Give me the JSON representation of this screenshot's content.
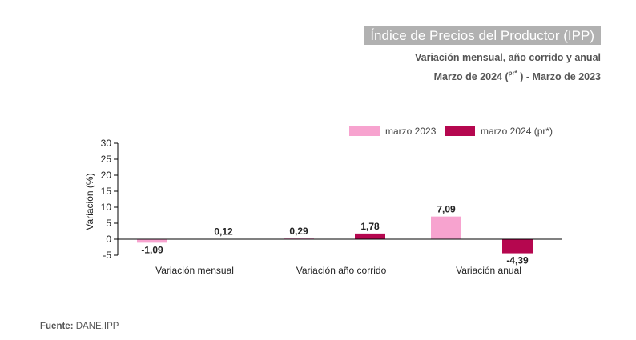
{
  "header": {
    "title": "Índice de Precios del Productor (IPP)",
    "subtitle_line1": "Variación mensual, año corrido y anual",
    "subtitle_line2_pre": "Marzo de 2024 (",
    "subtitle_line2_sup": "pr*",
    "subtitle_line2_post": " ) - Marzo de 2023"
  },
  "source": {
    "label": "Fuente:",
    "text": " DANE,IPP"
  },
  "colors": {
    "series_2023": "#f7a3cf",
    "series_2024": "#b5074f",
    "title_bg": "#b1b1b1"
  },
  "chart_data": {
    "type": "bar",
    "categories": [
      "Variación mensual",
      "Variación año corrido",
      "Variación anual"
    ],
    "series": [
      {
        "name": "marzo 2023",
        "values": [
          -1.09,
          0.29,
          7.09
        ],
        "labels": [
          "-1,09",
          "0,29",
          "7,09"
        ]
      },
      {
        "name": "marzo 2024 (pr*)",
        "values": [
          0.12,
          1.78,
          -4.39
        ],
        "labels": [
          "0,12",
          "1,78",
          "-4,39"
        ]
      }
    ],
    "ylabel": "Variación (%)",
    "xlabel": "",
    "ylim": [
      -5,
      30
    ],
    "yticks": [
      "-5",
      "0",
      "5",
      "10",
      "15",
      "20",
      "25",
      "30"
    ],
    "legend_position": "top-right",
    "grid": false
  }
}
